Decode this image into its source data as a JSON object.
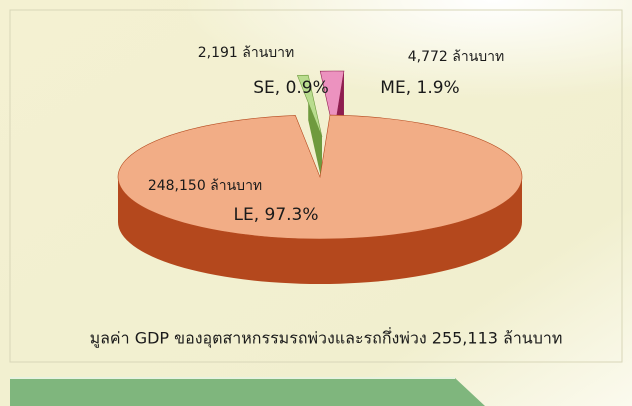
{
  "chart_data": {
    "type": "pie3d",
    "title": "มูลค่า GDP ของอุตสาหกรรมรถพ่วงและรถกึ่งพ่วง 255,113 ล้านบาท",
    "values": [
      2191,
      4772,
      248150
    ],
    "value_labels": [
      "2,191 ล้านบาท",
      "4,772 ล้านบาท",
      "248,150 ล้านบาท"
    ],
    "percents": [
      0.9,
      1.9,
      97.3
    ],
    "percent_labels": [
      "SE, 0.9%",
      "ME, 1.9%",
      "LE, 97.3%"
    ],
    "colors": [
      "#b9dc8e",
      "#ec92bf",
      "#f2ad86"
    ],
    "side_colors": [
      "#6f9a3e",
      "#8e1d4f",
      "#b4481d"
    ]
  }
}
